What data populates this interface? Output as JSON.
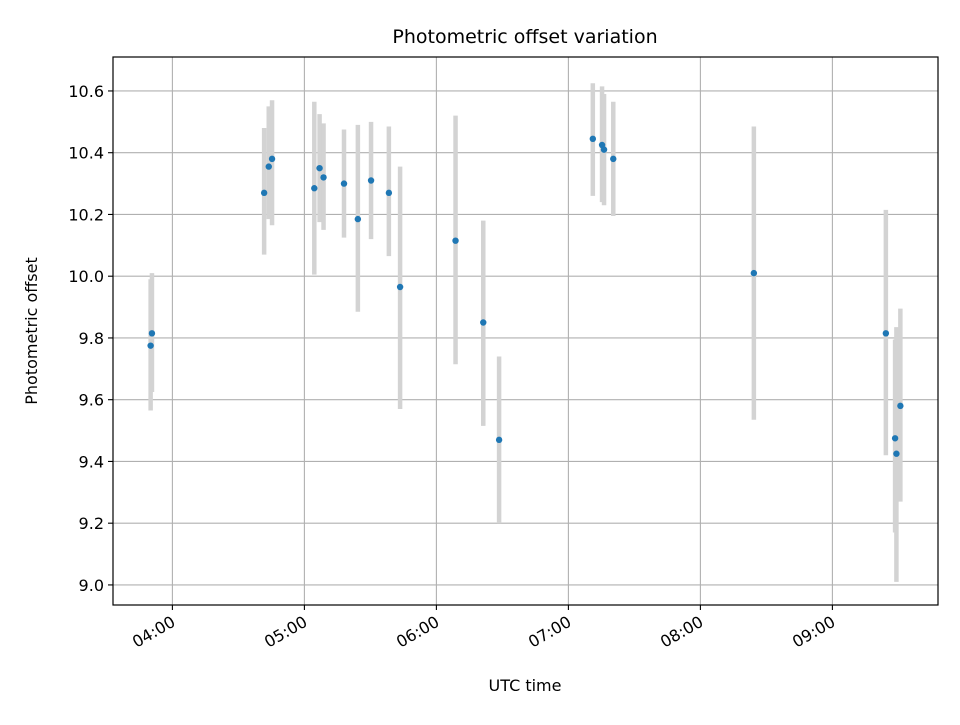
{
  "chart_data": {
    "type": "scatter",
    "title": "Photometric offset variation",
    "xlabel": "UTC time",
    "ylabel": "Photometric offset",
    "x_unit": "hours UTC",
    "xlim": [
      3.55,
      9.8
    ],
    "ylim": [
      8.935,
      10.71
    ],
    "grid": true,
    "x_ticks": [
      {
        "value": 4,
        "label": "04:00"
      },
      {
        "value": 5,
        "label": "05:00"
      },
      {
        "value": 6,
        "label": "06:00"
      },
      {
        "value": 7,
        "label": "07:00"
      },
      {
        "value": 8,
        "label": "08:00"
      },
      {
        "value": 9,
        "label": "09:00"
      }
    ],
    "y_ticks": [
      {
        "value": 9.0,
        "label": "9.0"
      },
      {
        "value": 9.2,
        "label": "9.2"
      },
      {
        "value": 9.4,
        "label": "9.4"
      },
      {
        "value": 9.6,
        "label": "9.6"
      },
      {
        "value": 9.8,
        "label": "9.8"
      },
      {
        "value": 10.0,
        "label": "10.0"
      },
      {
        "value": 10.2,
        "label": "10.2"
      },
      {
        "value": 10.4,
        "label": "10.4"
      },
      {
        "value": 10.6,
        "label": "10.6"
      }
    ],
    "marker_color": "#1f77b4",
    "errorbar_color": "#d3d3d3",
    "points": [
      {
        "x": 3.835,
        "y": 9.775,
        "yerr_low": 9.565,
        "yerr_high": 9.99
      },
      {
        "x": 3.845,
        "y": 9.815,
        "yerr_low": 9.625,
        "yerr_high": 10.01
      },
      {
        "x": 4.695,
        "y": 10.27,
        "yerr_low": 10.07,
        "yerr_high": 10.48
      },
      {
        "x": 4.73,
        "y": 10.355,
        "yerr_low": 10.185,
        "yerr_high": 10.55
      },
      {
        "x": 4.755,
        "y": 10.38,
        "yerr_low": 10.165,
        "yerr_high": 10.57
      },
      {
        "x": 5.075,
        "y": 10.285,
        "yerr_low": 10.005,
        "yerr_high": 10.565
      },
      {
        "x": 5.115,
        "y": 10.35,
        "yerr_low": 10.175,
        "yerr_high": 10.525
      },
      {
        "x": 5.145,
        "y": 10.32,
        "yerr_low": 10.15,
        "yerr_high": 10.495
      },
      {
        "x": 5.3,
        "y": 10.3,
        "yerr_low": 10.125,
        "yerr_high": 10.475
      },
      {
        "x": 5.405,
        "y": 10.185,
        "yerr_low": 9.885,
        "yerr_high": 10.49
      },
      {
        "x": 5.505,
        "y": 10.31,
        "yerr_low": 10.12,
        "yerr_high": 10.5
      },
      {
        "x": 5.64,
        "y": 10.27,
        "yerr_low": 10.065,
        "yerr_high": 10.485
      },
      {
        "x": 5.725,
        "y": 9.965,
        "yerr_low": 9.57,
        "yerr_high": 10.355
      },
      {
        "x": 6.145,
        "y": 10.115,
        "yerr_low": 9.715,
        "yerr_high": 10.52
      },
      {
        "x": 6.355,
        "y": 9.85,
        "yerr_low": 9.515,
        "yerr_high": 10.18
      },
      {
        "x": 6.475,
        "y": 9.47,
        "yerr_low": 9.2,
        "yerr_high": 9.74
      },
      {
        "x": 7.185,
        "y": 10.445,
        "yerr_low": 10.26,
        "yerr_high": 10.625
      },
      {
        "x": 7.255,
        "y": 10.425,
        "yerr_low": 10.24,
        "yerr_high": 10.615
      },
      {
        "x": 7.27,
        "y": 10.41,
        "yerr_low": 10.23,
        "yerr_high": 10.59
      },
      {
        "x": 7.34,
        "y": 10.38,
        "yerr_low": 10.195,
        "yerr_high": 10.565
      },
      {
        "x": 8.405,
        "y": 10.01,
        "yerr_low": 9.535,
        "yerr_high": 10.485
      },
      {
        "x": 9.405,
        "y": 9.815,
        "yerr_low": 9.42,
        "yerr_high": 10.215
      },
      {
        "x": 9.475,
        "y": 9.475,
        "yerr_low": 9.17,
        "yerr_high": 9.795
      },
      {
        "x": 9.485,
        "y": 9.425,
        "yerr_low": 9.01,
        "yerr_high": 9.835
      },
      {
        "x": 9.515,
        "y": 9.58,
        "yerr_low": 9.27,
        "yerr_high": 9.895
      }
    ]
  }
}
